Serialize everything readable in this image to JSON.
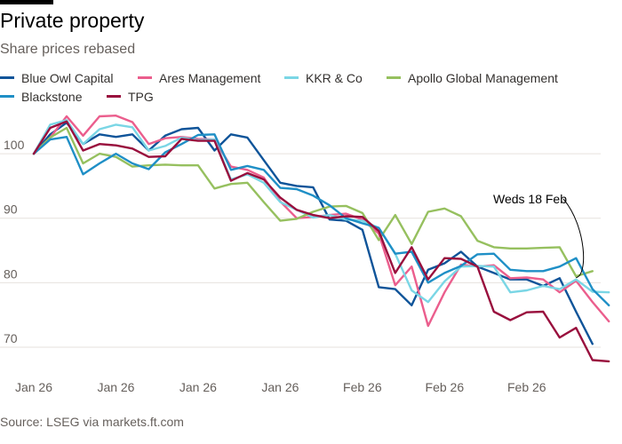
{
  "header": {
    "title": "Private property",
    "subtitle": "Share prices rebased"
  },
  "source": "Source: LSEG via markets.ft.com",
  "chart_data": {
    "type": "line",
    "title": "Private property",
    "subtitle": "Share prices rebased",
    "xlabel": "",
    "ylabel": "",
    "ylim": [
      66,
      108
    ],
    "yticks": [
      70,
      80,
      90,
      100
    ],
    "x_tick_labels": [
      "Jan 26",
      "Jan 26",
      "Jan 26",
      "Jan 26",
      "Feb 26",
      "Feb 26",
      "Feb 26"
    ],
    "x_tick_positions": [
      0,
      5,
      10,
      15,
      20,
      25,
      30
    ],
    "xlim": [
      0,
      34.5
    ],
    "grid": true,
    "annotation": {
      "text": "Weds 18 Feb",
      "x_index": 33,
      "y_value": 80.5
    },
    "series": [
      {
        "name": "Blue Owl Capital",
        "color": "#0f5499",
        "values": [
          100,
          103,
          104.8,
          101.5,
          103,
          102.6,
          103,
          100.5,
          102.8,
          103.8,
          104,
          100.5,
          103,
          102.5,
          99,
          95.5,
          95,
          94.8,
          89.8,
          89.6,
          88.2,
          79.3,
          79,
          76.5,
          82,
          83,
          84.8,
          82.5,
          81.5,
          80.5,
          80.5,
          79.5,
          80.7,
          75.5,
          70.5
        ]
      },
      {
        "name": "Ares Management",
        "color": "#eb5e8d",
        "values": [
          100,
          102.5,
          105.8,
          102.8,
          105.8,
          105.9,
          104.9,
          101.5,
          102.4,
          102.6,
          102.3,
          102.2,
          98,
          97.5,
          96.3,
          92.6,
          90,
          90.2,
          90.5,
          90.7,
          89.8,
          87.6,
          79.6,
          82.5,
          73.3,
          78.5,
          82.8,
          82.5,
          82.7,
          80.7,
          80.8,
          80.5,
          78.5,
          80.3,
          77,
          74
        ]
      },
      {
        "name": "KKR & Co",
        "color": "#7ad6e5",
        "values": [
          100,
          104.5,
          105.2,
          101.5,
          103.8,
          104.5,
          104.1,
          100.5,
          101.2,
          102.5,
          102.1,
          102.2,
          96,
          96.8,
          95.5,
          92.5,
          91.3,
          90.1,
          90.5,
          89.8,
          89.6,
          88.5,
          84.5,
          78.8,
          77,
          80.2,
          82.5,
          82.6,
          82.5,
          78.5,
          78.8,
          79.5,
          79,
          80.5,
          78.6,
          78.5
        ]
      },
      {
        "name": "Apollo Global Management",
        "color": "#96c05f",
        "values": [
          100,
          102.5,
          104,
          98.5,
          100,
          99.5,
          98,
          98.2,
          98.3,
          98.2,
          98.2,
          94.6,
          95.3,
          95.5,
          92.5,
          89.6,
          89.9,
          91,
          91.8,
          91.9,
          90.8,
          86.6,
          90.5,
          86,
          91,
          91.5,
          90.3,
          86.5,
          85.5,
          85.3,
          85.3,
          85.4,
          85.5,
          81,
          81.8
        ]
      },
      {
        "name": "Blackstone",
        "color": "#1f8fc6",
        "values": [
          100,
          102.2,
          102.6,
          96.8,
          98.5,
          100,
          98.5,
          97.6,
          100.2,
          101.5,
          102.9,
          103,
          97.5,
          98.1,
          97.5,
          94.7,
          94.5,
          93.5,
          92,
          90,
          89.2,
          88.5,
          84.5,
          84.8,
          80,
          81.5,
          82.6,
          84.4,
          84.5,
          82,
          81.8,
          81.8,
          82.5,
          83.8,
          79,
          76.5
        ]
      },
      {
        "name": "TPG",
        "color": "#990f3d",
        "values": [
          100,
          104,
          105,
          100.5,
          101.5,
          101.3,
          100.8,
          99.5,
          99.6,
          102.3,
          102,
          102,
          95.8,
          97,
          96,
          93.2,
          91.3,
          90.5,
          90,
          90.3,
          90.2,
          88,
          81.5,
          85.5,
          80.5,
          83.8,
          83.7,
          82.5,
          75.5,
          74.2,
          75.4,
          75.5,
          71.5,
          73,
          68,
          67.8
        ]
      }
    ]
  }
}
